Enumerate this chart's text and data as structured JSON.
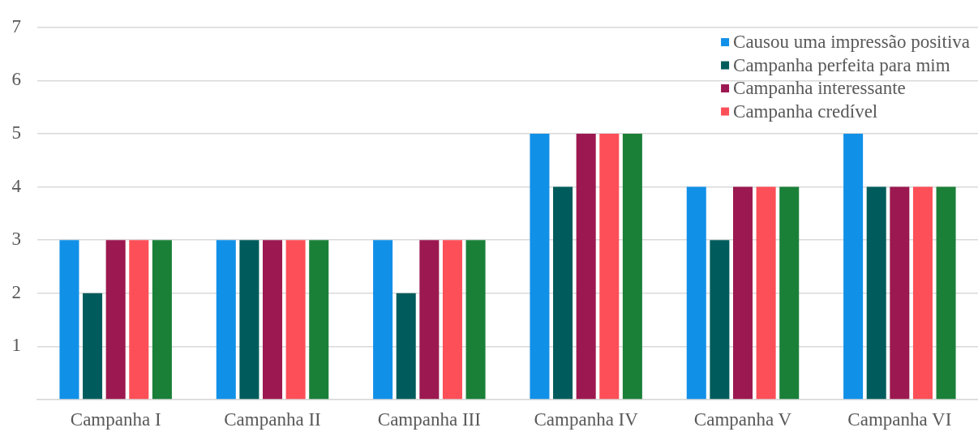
{
  "chart_data": {
    "type": "bar",
    "categories": [
      "Campanha I",
      "Campanha II",
      "Campanha III",
      "Campanha IV",
      "Campanha V",
      "Campanha VI"
    ],
    "series": [
      {
        "name": "Causou uma impressão positiva",
        "color": "#1190e8",
        "values": [
          3,
          3,
          3,
          5,
          4,
          5
        ]
      },
      {
        "name": "Campanha perfeita para mim",
        "color": "#005c5c",
        "values": [
          2,
          3,
          2,
          4,
          3,
          4
        ]
      },
      {
        "name": "Campanha interessante",
        "color": "#9c1850",
        "values": [
          3,
          3,
          3,
          5,
          4,
          4
        ]
      },
      {
        "name": "Campanha credível",
        "color": "#fd4f57",
        "values": [
          3,
          3,
          3,
          5,
          4,
          4
        ]
      },
      {
        "color": "#1a8038",
        "values": [
          3,
          3,
          3,
          5,
          4,
          4
        ]
      }
    ],
    "ylim": [
      0,
      7
    ],
    "yticks": [
      {
        "value": 0,
        "label": null
      },
      1,
      2,
      3,
      4,
      5,
      6,
      7
    ],
    "grid": "y",
    "legend": "top right"
  }
}
